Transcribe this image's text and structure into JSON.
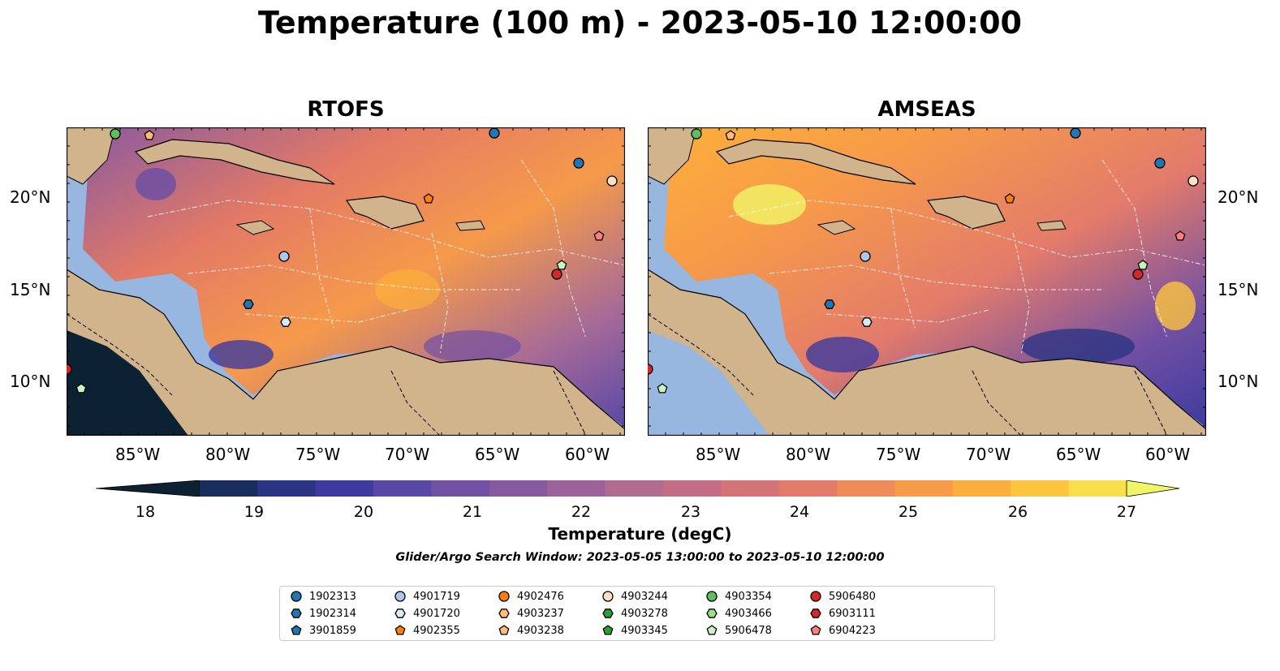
{
  "title": "Temperature (100 m) - 2023-05-10 12:00:00",
  "panels": [
    {
      "title": "RTOFS"
    },
    {
      "title": "AMSEAS"
    }
  ],
  "lat_ticks": [
    "20°N",
    "15°N",
    "10°N"
  ],
  "lon_ticks": [
    "85°W",
    "80°W",
    "75°W",
    "70°W",
    "65°W",
    "60°W"
  ],
  "colorbar": {
    "label": "Temperature (degC)",
    "ticks": [
      "18",
      "19",
      "20",
      "21",
      "22",
      "23",
      "24",
      "25",
      "26",
      "27"
    ],
    "colors": [
      "#0c2233",
      "#1a2e5e",
      "#2c3583",
      "#3d3b9e",
      "#5a48a6",
      "#7250a3",
      "#87599e",
      "#9b6399",
      "#b06b91",
      "#c36e85",
      "#d47479",
      "#e37b6b",
      "#ef8a59",
      "#f79b48",
      "#fcae3c",
      "#fdc43f",
      "#f7de4a",
      "#f0f566"
    ]
  },
  "search_window": "Glider/Argo Search Window: 2023-05-05 13:00:00 to 2023-05-10 12:00:00",
  "legend": [
    {
      "id": "1902313",
      "marker": "circle",
      "color": "#1f77b4"
    },
    {
      "id": "1902314",
      "marker": "hexagon",
      "color": "#1f77b4"
    },
    {
      "id": "3901859",
      "marker": "pentagon",
      "color": "#1f77b4"
    },
    {
      "id": "4901719",
      "marker": "circle",
      "color": "#aec7e8"
    },
    {
      "id": "4901720",
      "marker": "hexagon",
      "color": "#d6ecfa"
    },
    {
      "id": "4902355",
      "marker": "pentagon",
      "color": "#ff7f0e"
    },
    {
      "id": "4902476",
      "marker": "circle",
      "color": "#ff7f0e"
    },
    {
      "id": "4903237",
      "marker": "hexagon",
      "color": "#ffbb78"
    },
    {
      "id": "4903238",
      "marker": "pentagon",
      "color": "#ffbb78"
    },
    {
      "id": "4903244",
      "marker": "circle",
      "color": "#fde0c5"
    },
    {
      "id": "4903278",
      "marker": "hexagon",
      "color": "#2ca02c"
    },
    {
      "id": "4903345",
      "marker": "pentagon",
      "color": "#2ca02c"
    },
    {
      "id": "4903354",
      "marker": "circle",
      "color": "#5fbf5f"
    },
    {
      "id": "4903466",
      "marker": "hexagon",
      "color": "#98df8a"
    },
    {
      "id": "5906478",
      "marker": "pentagon",
      "color": "#c7f5c0"
    },
    {
      "id": "5906480",
      "marker": "circle",
      "color": "#d62728"
    },
    {
      "id": "6903111",
      "marker": "hexagon",
      "color": "#d62728"
    },
    {
      "id": "6904223",
      "marker": "pentagon",
      "color": "#ff7f7f"
    }
  ]
}
